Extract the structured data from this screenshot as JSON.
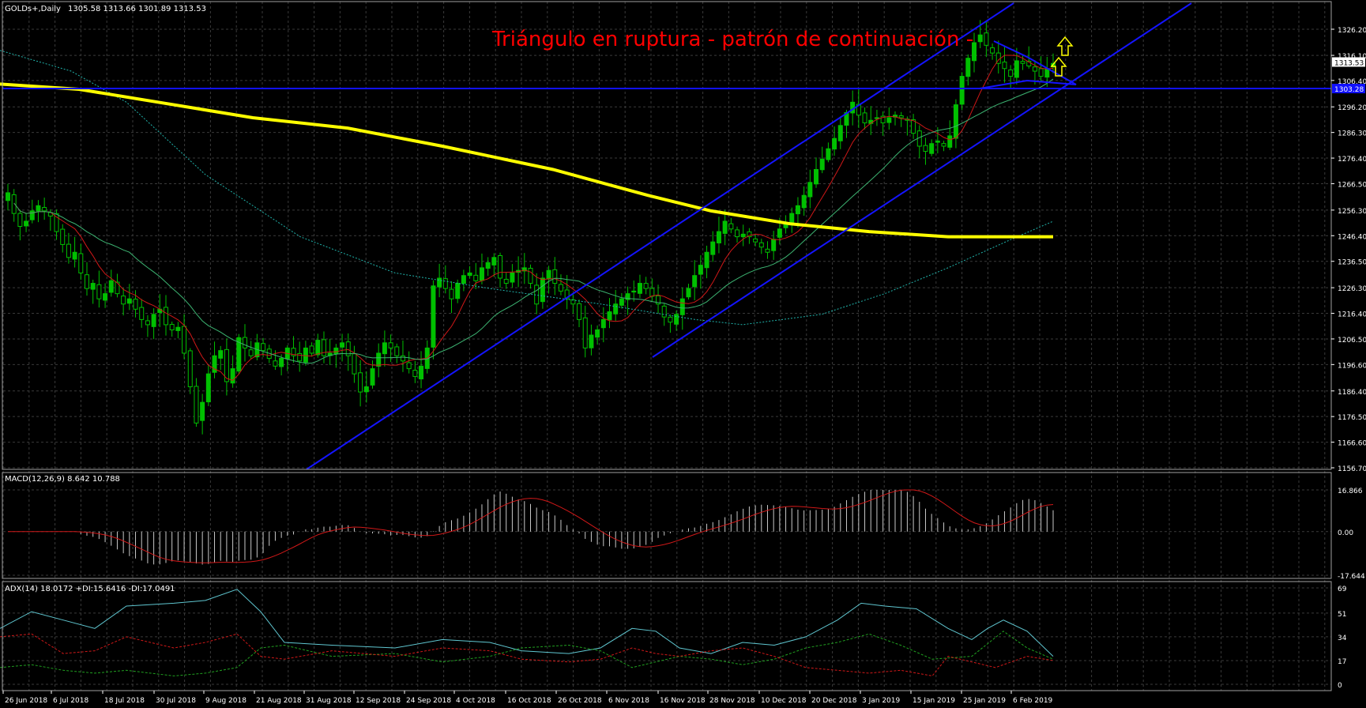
{
  "chart_data": [
    {
      "type": "candlestick",
      "panel": "price",
      "symbol_label": "GOLDs+,Daily",
      "ohlc_label": "1305.58 1313.66 1301.89 1313.53",
      "title": "Triángulo en ruptura - patrón de continuación -",
      "ylim": [
        1156.7,
        1334.0
      ],
      "y_ticks": [
        "1326.20",
        "1316.10",
        "1306.40",
        "1296.20",
        "1286.30",
        "1276.40",
        "1266.50",
        "1256.30",
        "1246.40",
        "1236.50",
        "1226.30",
        "1216.40",
        "1206.50",
        "1196.60",
        "1186.40",
        "1176.50",
        "1166.60",
        "1156.70"
      ],
      "y_tick_values": [
        1326.2,
        1316.1,
        1306.4,
        1296.2,
        1286.3,
        1276.4,
        1266.5,
        1256.3,
        1246.4,
        1236.5,
        1226.3,
        1216.4,
        1206.5,
        1196.6,
        1186.4,
        1176.5,
        1166.6,
        1156.7
      ],
      "current_price_label": "1313.53",
      "current_price": 1313.53,
      "horizontal_line_label": "1303.28",
      "horizontal_line_value": 1303.28,
      "close_series": [
        1263,
        1255,
        1250,
        1252,
        1256,
        1258,
        1256,
        1254,
        1248,
        1243,
        1238,
        1240,
        1232,
        1226,
        1228,
        1222,
        1224,
        1229,
        1224,
        1220,
        1222,
        1218,
        1214,
        1212,
        1216,
        1218,
        1212,
        1210,
        1211,
        1201,
        1188,
        1174,
        1182,
        1193,
        1200,
        1202,
        1190,
        1195,
        1207,
        1203,
        1200,
        1205,
        1202,
        1199,
        1196,
        1199,
        1203,
        1200,
        1198,
        1203,
        1201,
        1206,
        1200,
        1201,
        1203,
        1205,
        1200,
        1193,
        1186,
        1188,
        1195,
        1201,
        1205,
        1203,
        1200,
        1198,
        1195,
        1192,
        1196,
        1203,
        1227,
        1230,
        1226,
        1222,
        1228,
        1231,
        1232,
        1229,
        1234,
        1236,
        1238,
        1230,
        1228,
        1232,
        1233,
        1234,
        1228,
        1220,
        1230,
        1233,
        1228,
        1225,
        1222,
        1220,
        1214,
        1203,
        1208,
        1210,
        1214,
        1217,
        1220,
        1222,
        1224,
        1225,
        1228,
        1226,
        1223,
        1220,
        1215,
        1213,
        1216,
        1222,
        1226,
        1231,
        1235,
        1240,
        1244,
        1248,
        1252,
        1249,
        1246,
        1247,
        1246,
        1244,
        1242,
        1240,
        1245,
        1249,
        1251,
        1255,
        1258,
        1262,
        1267,
        1272,
        1276,
        1280,
        1284,
        1289,
        1294,
        1298,
        1293,
        1290,
        1291,
        1292,
        1290,
        1292,
        1293,
        1292,
        1291,
        1286,
        1281,
        1279,
        1282,
        1283,
        1281,
        1285,
        1297,
        1308,
        1315,
        1321,
        1324,
        1320,
        1317,
        1313,
        1311,
        1308,
        1314,
        1313,
        1312,
        1310,
        1308,
        1311,
        1313
      ],
      "overlays": [
        {
          "label": "long moving average (yellow)",
          "color": "#ffff00"
        },
        {
          "label": "moving average (teal dotted)",
          "color": "#20b2aa"
        },
        {
          "label": "fast moving average (red)",
          "color": "#d01818"
        },
        {
          "label": "moving average (green)",
          "color": "#3cb371"
        }
      ],
      "annotations": [
        {
          "kind": "trend_channel",
          "color": "#1010ff"
        },
        {
          "kind": "triangle",
          "color": "#1010ff"
        },
        {
          "kind": "arrow_up",
          "color": "#ffff00"
        }
      ]
    },
    {
      "type": "histogram",
      "panel": "macd",
      "label": "MACD(12,26,9) 8.642 10.788",
      "ylim": [
        -17.644,
        16.866
      ],
      "y_ticks": [
        "16.866",
        "0.00",
        "-17.644"
      ],
      "y_tick_values": [
        16.866,
        0,
        -17.644
      ],
      "signal_color": "#d01818",
      "histogram_color": "#c8c8c8"
    },
    {
      "type": "line",
      "panel": "adx",
      "label": "ADX(14) 18.0172 +DI:15.6416 -DI:17.0491",
      "ylim": [
        0,
        69
      ],
      "y_ticks": [
        "69",
        "51",
        "34",
        "17",
        "0"
      ],
      "y_tick_values": [
        69,
        51,
        34,
        17,
        0
      ],
      "series_colors": {
        "adx": "#5fc6d0",
        "plus_di": "#20a020",
        "minus_di": "#d01818"
      }
    }
  ],
  "x_axis": {
    "labels": [
      "26 Jun 2018",
      "6 Jul 2018",
      "18 Jul 2018",
      "30 Jul 2018",
      "9 Aug 2018",
      "21 Aug 2018",
      "31 Aug 2018",
      "12 Sep 2018",
      "24 Sep 2018",
      "4 Oct 2018",
      "16 Oct 2018",
      "26 Oct 2018",
      "6 Nov 2018",
      "16 Nov 2018",
      "28 Nov 2018",
      "10 Dec 2018",
      "20 Dec 2018",
      "3 Jan 2019",
      "15 Jan 2019",
      "25 Jan 2019",
      "6 Feb 2019"
    ]
  },
  "colors": {
    "background": "#000000",
    "grid": "#3a3a3a",
    "frame": "#a0a0a0",
    "axis_text": "#ffffff",
    "bull": "#00c000",
    "bear": "#00c000",
    "title": "#ff0000"
  }
}
